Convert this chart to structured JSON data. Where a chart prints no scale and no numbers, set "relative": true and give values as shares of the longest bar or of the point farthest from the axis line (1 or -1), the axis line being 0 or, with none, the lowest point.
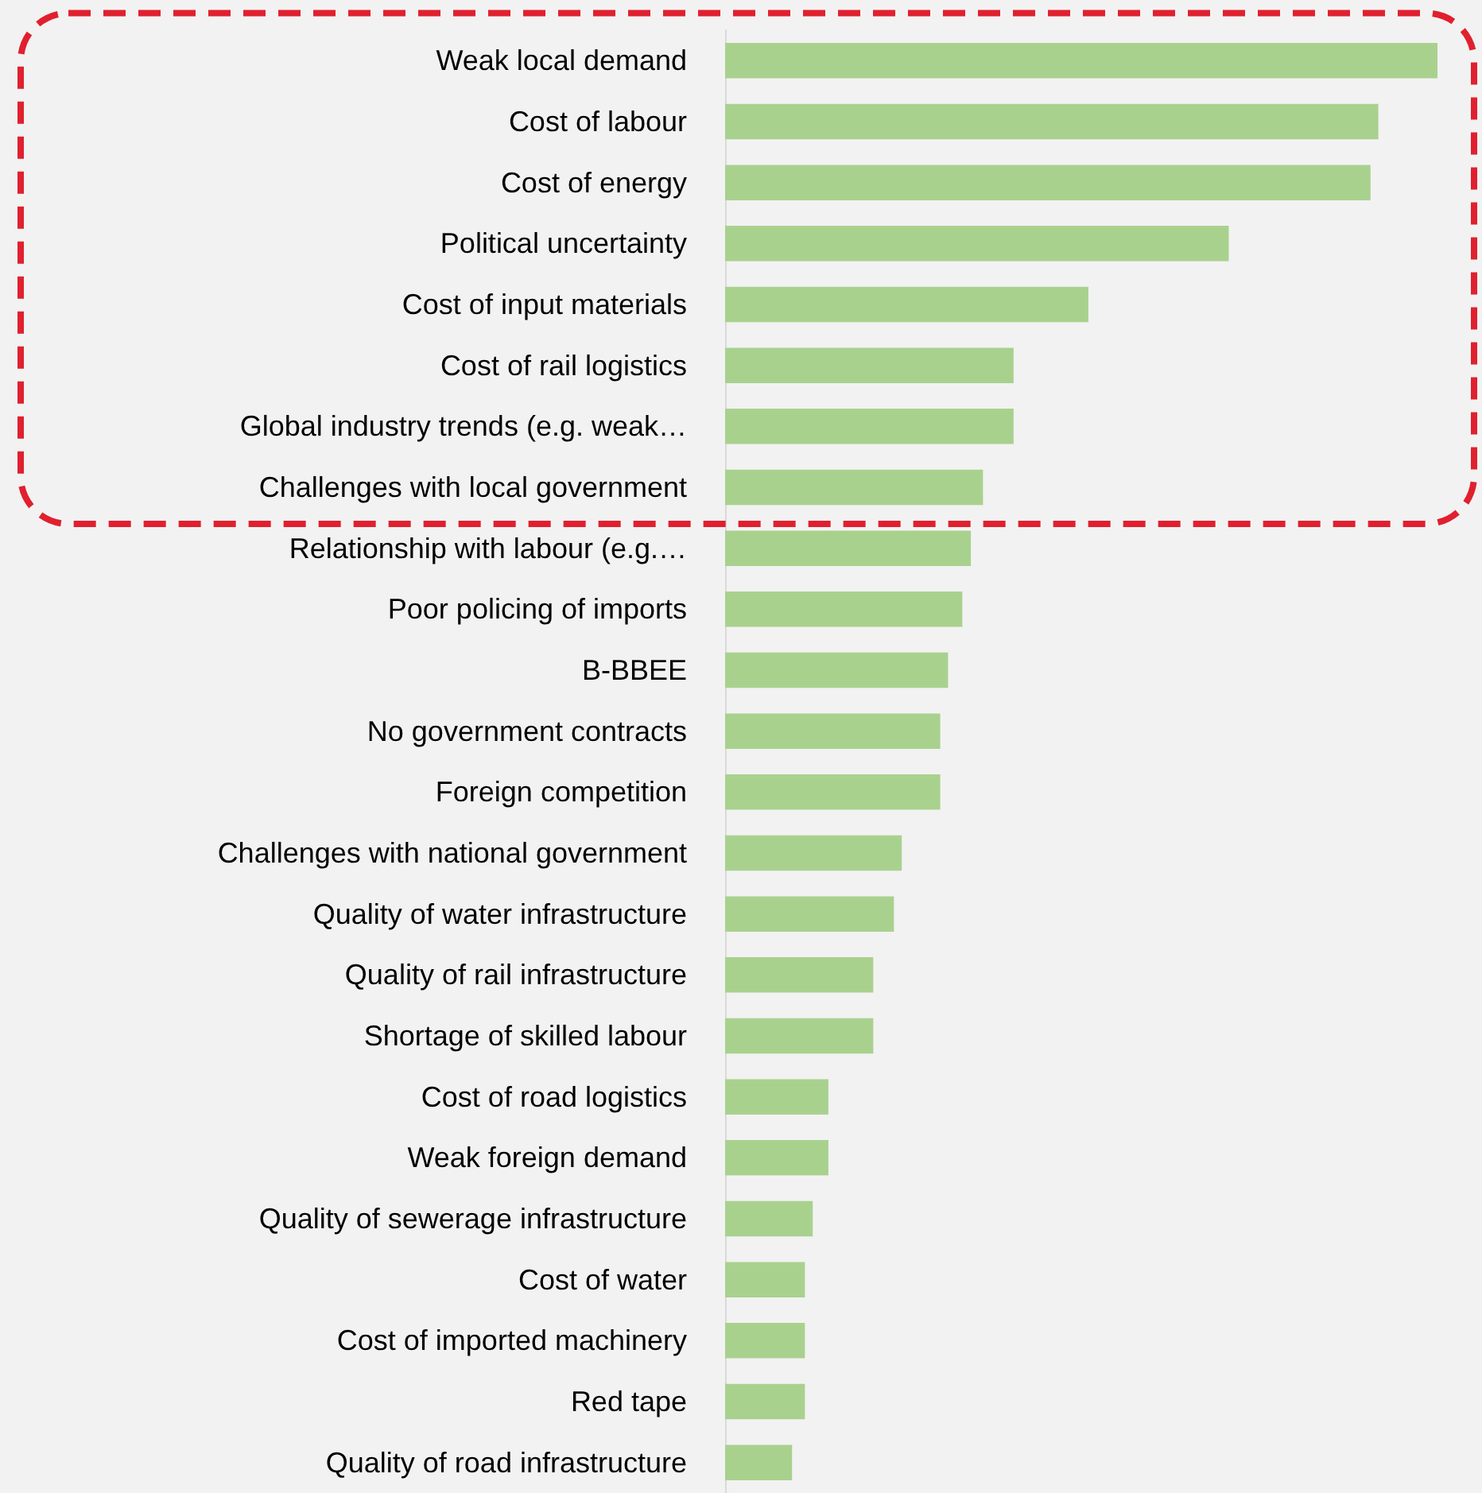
{
  "chart_data": {
    "type": "bar",
    "orientation": "horizontal",
    "relative": true,
    "color": "#a9d18e",
    "categories": [
      "Weak local demand",
      "Cost of labour",
      "Cost of energy",
      "Political uncertainty",
      "Cost of input materials",
      "Cost of rail logistics",
      "Global industry trends (e.g. weak…",
      "Challenges with local government",
      "Relationship with labour (e.g.…",
      "Poor policing of imports",
      "B-BBEE",
      "No government contracts",
      "Foreign competition",
      "Challenges with national government",
      "Quality of water infrastructure",
      "Quality of rail infrastructure",
      "Shortage of skilled labour",
      "Cost of road logistics",
      "Weak foreign demand",
      "Quality of sewerage infrastructure",
      "Cost of water",
      "Cost of imported machinery",
      "Red tape",
      "Quality of road infrastructure"
    ],
    "values": [
      1,
      0.917,
      0.906,
      0.707,
      0.51,
      0.405,
      0.405,
      0.362,
      0.345,
      0.333,
      0.313,
      0.302,
      0.302,
      0.248,
      0.237,
      0.208,
      0.208,
      0.145,
      0.145,
      0.123,
      0.112,
      0.112,
      0.112,
      0.094
    ]
  }
}
